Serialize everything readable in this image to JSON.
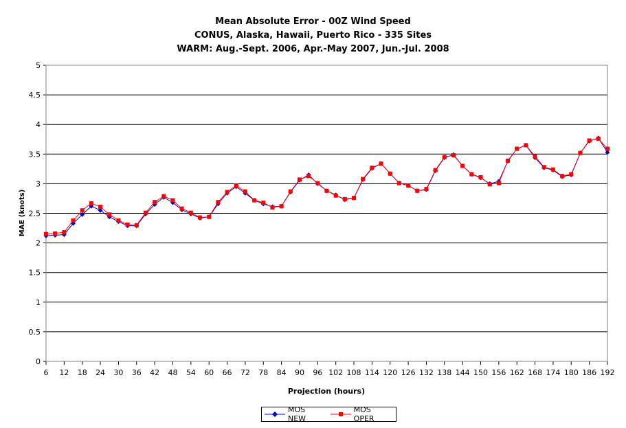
{
  "chart_data": {
    "type": "line",
    "title": "Mean Absolute Error - 00Z Wind Speed",
    "subtitle_lines": [
      "CONUS, Alaska, Hawaii, Puerto Rico - 335 Sites",
      "WARM: Aug.-Sept. 2006, Apr.-May 2007, Jun.-Jul. 2008"
    ],
    "xlabel": "Projection (hours)",
    "ylabel": "MAE (knots)",
    "ylim": [
      0,
      5
    ],
    "yticks": [
      "0",
      "0.5",
      "1",
      "1.5",
      "2",
      "2.5",
      "3",
      "3.5",
      "4",
      "4.5",
      "5"
    ],
    "x": [
      6,
      9,
      12,
      15,
      18,
      21,
      24,
      27,
      30,
      33,
      36,
      39,
      42,
      45,
      48,
      51,
      54,
      57,
      60,
      63,
      66,
      69,
      72,
      75,
      78,
      81,
      84,
      87,
      90,
      93,
      96,
      99,
      102,
      105,
      108,
      111,
      114,
      117,
      120,
      123,
      126,
      129,
      132,
      135,
      138,
      141,
      144,
      147,
      150,
      153,
      156,
      159,
      162,
      165,
      168,
      171,
      174,
      177,
      180,
      183,
      186,
      189,
      192
    ],
    "xtick_labels": [
      "6",
      "12",
      "18",
      "24",
      "30",
      "36",
      "42",
      "48",
      "54",
      "60",
      "66",
      "72",
      "78",
      "84",
      "90",
      "96",
      "102",
      "108",
      "114",
      "120",
      "126",
      "132",
      "138",
      "144",
      "150",
      "156",
      "162",
      "168",
      "174",
      "180",
      "186",
      "192"
    ],
    "grid": "horizontal",
    "legend_placement": "bottom",
    "series": [
      {
        "name": "MOS NEW",
        "color": "#0000cc",
        "marker": "diamond",
        "values": [
          2.12,
          2.13,
          2.14,
          2.33,
          2.48,
          2.62,
          2.55,
          2.44,
          2.36,
          2.29,
          2.29,
          2.49,
          2.65,
          2.77,
          2.68,
          2.56,
          2.49,
          2.42,
          2.44,
          2.66,
          2.84,
          2.95,
          2.84,
          2.72,
          2.66,
          2.61,
          2.62,
          2.86,
          3.06,
          3.15,
          3.0,
          2.88,
          2.81,
          2.73,
          2.76,
          3.07,
          3.26,
          3.34,
          3.17,
          3.01,
          2.97,
          2.88,
          2.9,
          3.22,
          3.44,
          3.49,
          3.3,
          3.16,
          3.1,
          3.0,
          3.04,
          3.38,
          3.59,
          3.65,
          3.44,
          3.27,
          3.23,
          3.12,
          3.15,
          3.52,
          3.72,
          3.77,
          3.53
        ]
      },
      {
        "name": "MOS OPER",
        "color": "#ff0000",
        "marker": "square",
        "values": [
          2.15,
          2.16,
          2.18,
          2.38,
          2.55,
          2.67,
          2.61,
          2.48,
          2.38,
          2.31,
          2.3,
          2.51,
          2.69,
          2.79,
          2.72,
          2.58,
          2.51,
          2.43,
          2.44,
          2.69,
          2.86,
          2.97,
          2.87,
          2.72,
          2.68,
          2.6,
          2.62,
          2.87,
          3.07,
          3.13,
          3.01,
          2.88,
          2.8,
          2.74,
          2.76,
          3.08,
          3.27,
          3.34,
          3.17,
          3.01,
          2.97,
          2.88,
          2.91,
          3.23,
          3.45,
          3.48,
          3.3,
          3.16,
          3.11,
          2.99,
          3.01,
          3.39,
          3.59,
          3.65,
          3.46,
          3.28,
          3.24,
          3.13,
          3.16,
          3.52,
          3.73,
          3.76,
          3.59
        ]
      }
    ]
  }
}
